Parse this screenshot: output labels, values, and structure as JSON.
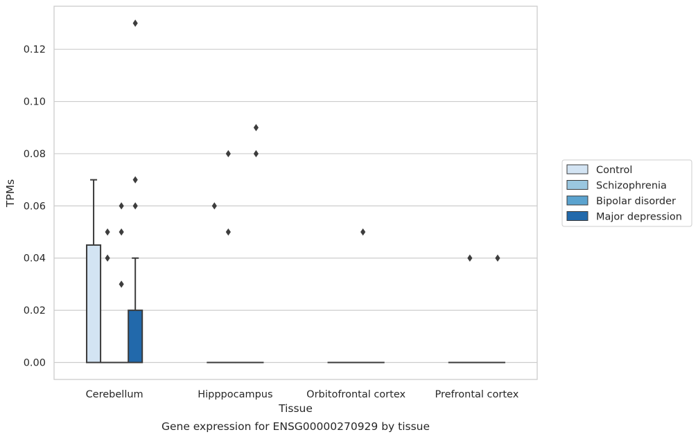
{
  "chart_data": {
    "type": "box",
    "title": "",
    "caption": "Gene expression for ENSG00000270929 by tissue",
    "xlabel": "Tissue",
    "ylabel": "TPMs",
    "ylim": [
      -0.0065,
      0.1365
    ],
    "yticks": [
      0.0,
      0.02,
      0.04,
      0.06,
      0.08,
      0.1,
      0.12
    ],
    "ytick_labels": [
      "0.00",
      "0.02",
      "0.04",
      "0.06",
      "0.08",
      "0.10",
      "0.12"
    ],
    "grid": "horizontal",
    "legend_position": "right",
    "categories": [
      "Cerebellum",
      "Hipppocampus",
      "Orbitofrontal cortex",
      "Prefrontal cortex"
    ],
    "series": [
      {
        "name": "Control",
        "color": "#d3e4f3",
        "boxes": [
          {
            "q1": 0.0,
            "median": 0.0,
            "q3": 0.045,
            "whisker_low": 0.0,
            "whisker_high": 0.07,
            "outliers": []
          },
          {
            "q1": 0.0,
            "median": 0.0,
            "q3": 0.0,
            "whisker_low": 0.0,
            "whisker_high": 0.0,
            "outliers": [
              0.06
            ]
          },
          {
            "q1": 0.0,
            "median": 0.0,
            "q3": 0.0,
            "whisker_low": 0.0,
            "whisker_high": 0.0,
            "outliers": []
          },
          {
            "q1": 0.0,
            "median": 0.0,
            "q3": 0.0,
            "whisker_low": 0.0,
            "whisker_high": 0.0,
            "outliers": []
          }
        ]
      },
      {
        "name": "Schizophrenia",
        "color": "#9ac7e0",
        "boxes": [
          {
            "q1": 0.0,
            "median": 0.0,
            "q3": 0.0,
            "whisker_low": 0.0,
            "whisker_high": 0.0,
            "outliers": [
              0.04,
              0.05
            ]
          },
          {
            "q1": 0.0,
            "median": 0.0,
            "q3": 0.0,
            "whisker_low": 0.0,
            "whisker_high": 0.0,
            "outliers": [
              0.05,
              0.08
            ]
          },
          {
            "q1": 0.0,
            "median": 0.0,
            "q3": 0.0,
            "whisker_low": 0.0,
            "whisker_high": 0.0,
            "outliers": []
          },
          {
            "q1": 0.0,
            "median": 0.0,
            "q3": 0.0,
            "whisker_low": 0.0,
            "whisker_high": 0.0,
            "outliers": [
              0.04
            ]
          }
        ]
      },
      {
        "name": "Bipolar disorder",
        "color": "#5ba3cf",
        "boxes": [
          {
            "q1": 0.0,
            "median": 0.0,
            "q3": 0.0,
            "whisker_low": 0.0,
            "whisker_high": 0.0,
            "outliers": [
              0.03,
              0.05,
              0.06
            ]
          },
          {
            "q1": 0.0,
            "median": 0.0,
            "q3": 0.0,
            "whisker_low": 0.0,
            "whisker_high": 0.0,
            "outliers": []
          },
          {
            "q1": 0.0,
            "median": 0.0,
            "q3": 0.0,
            "whisker_low": 0.0,
            "whisker_high": 0.0,
            "outliers": [
              0.05
            ]
          },
          {
            "q1": 0.0,
            "median": 0.0,
            "q3": 0.0,
            "whisker_low": 0.0,
            "whisker_high": 0.0,
            "outliers": []
          }
        ]
      },
      {
        "name": "Major depression",
        "color": "#2269ab",
        "boxes": [
          {
            "q1": 0.0,
            "median": 0.0,
            "q3": 0.02,
            "whisker_low": 0.0,
            "whisker_high": 0.04,
            "outliers": [
              0.06,
              0.07,
              0.13
            ]
          },
          {
            "q1": 0.0,
            "median": 0.0,
            "q3": 0.0,
            "whisker_low": 0.0,
            "whisker_high": 0.0,
            "outliers": [
              0.08,
              0.09
            ]
          },
          {
            "q1": 0.0,
            "median": 0.0,
            "q3": 0.0,
            "whisker_low": 0.0,
            "whisker_high": 0.0,
            "outliers": []
          },
          {
            "q1": 0.0,
            "median": 0.0,
            "q3": 0.0,
            "whisker_low": 0.0,
            "whisker_high": 0.0,
            "outliers": [
              0.04
            ]
          }
        ]
      }
    ]
  }
}
